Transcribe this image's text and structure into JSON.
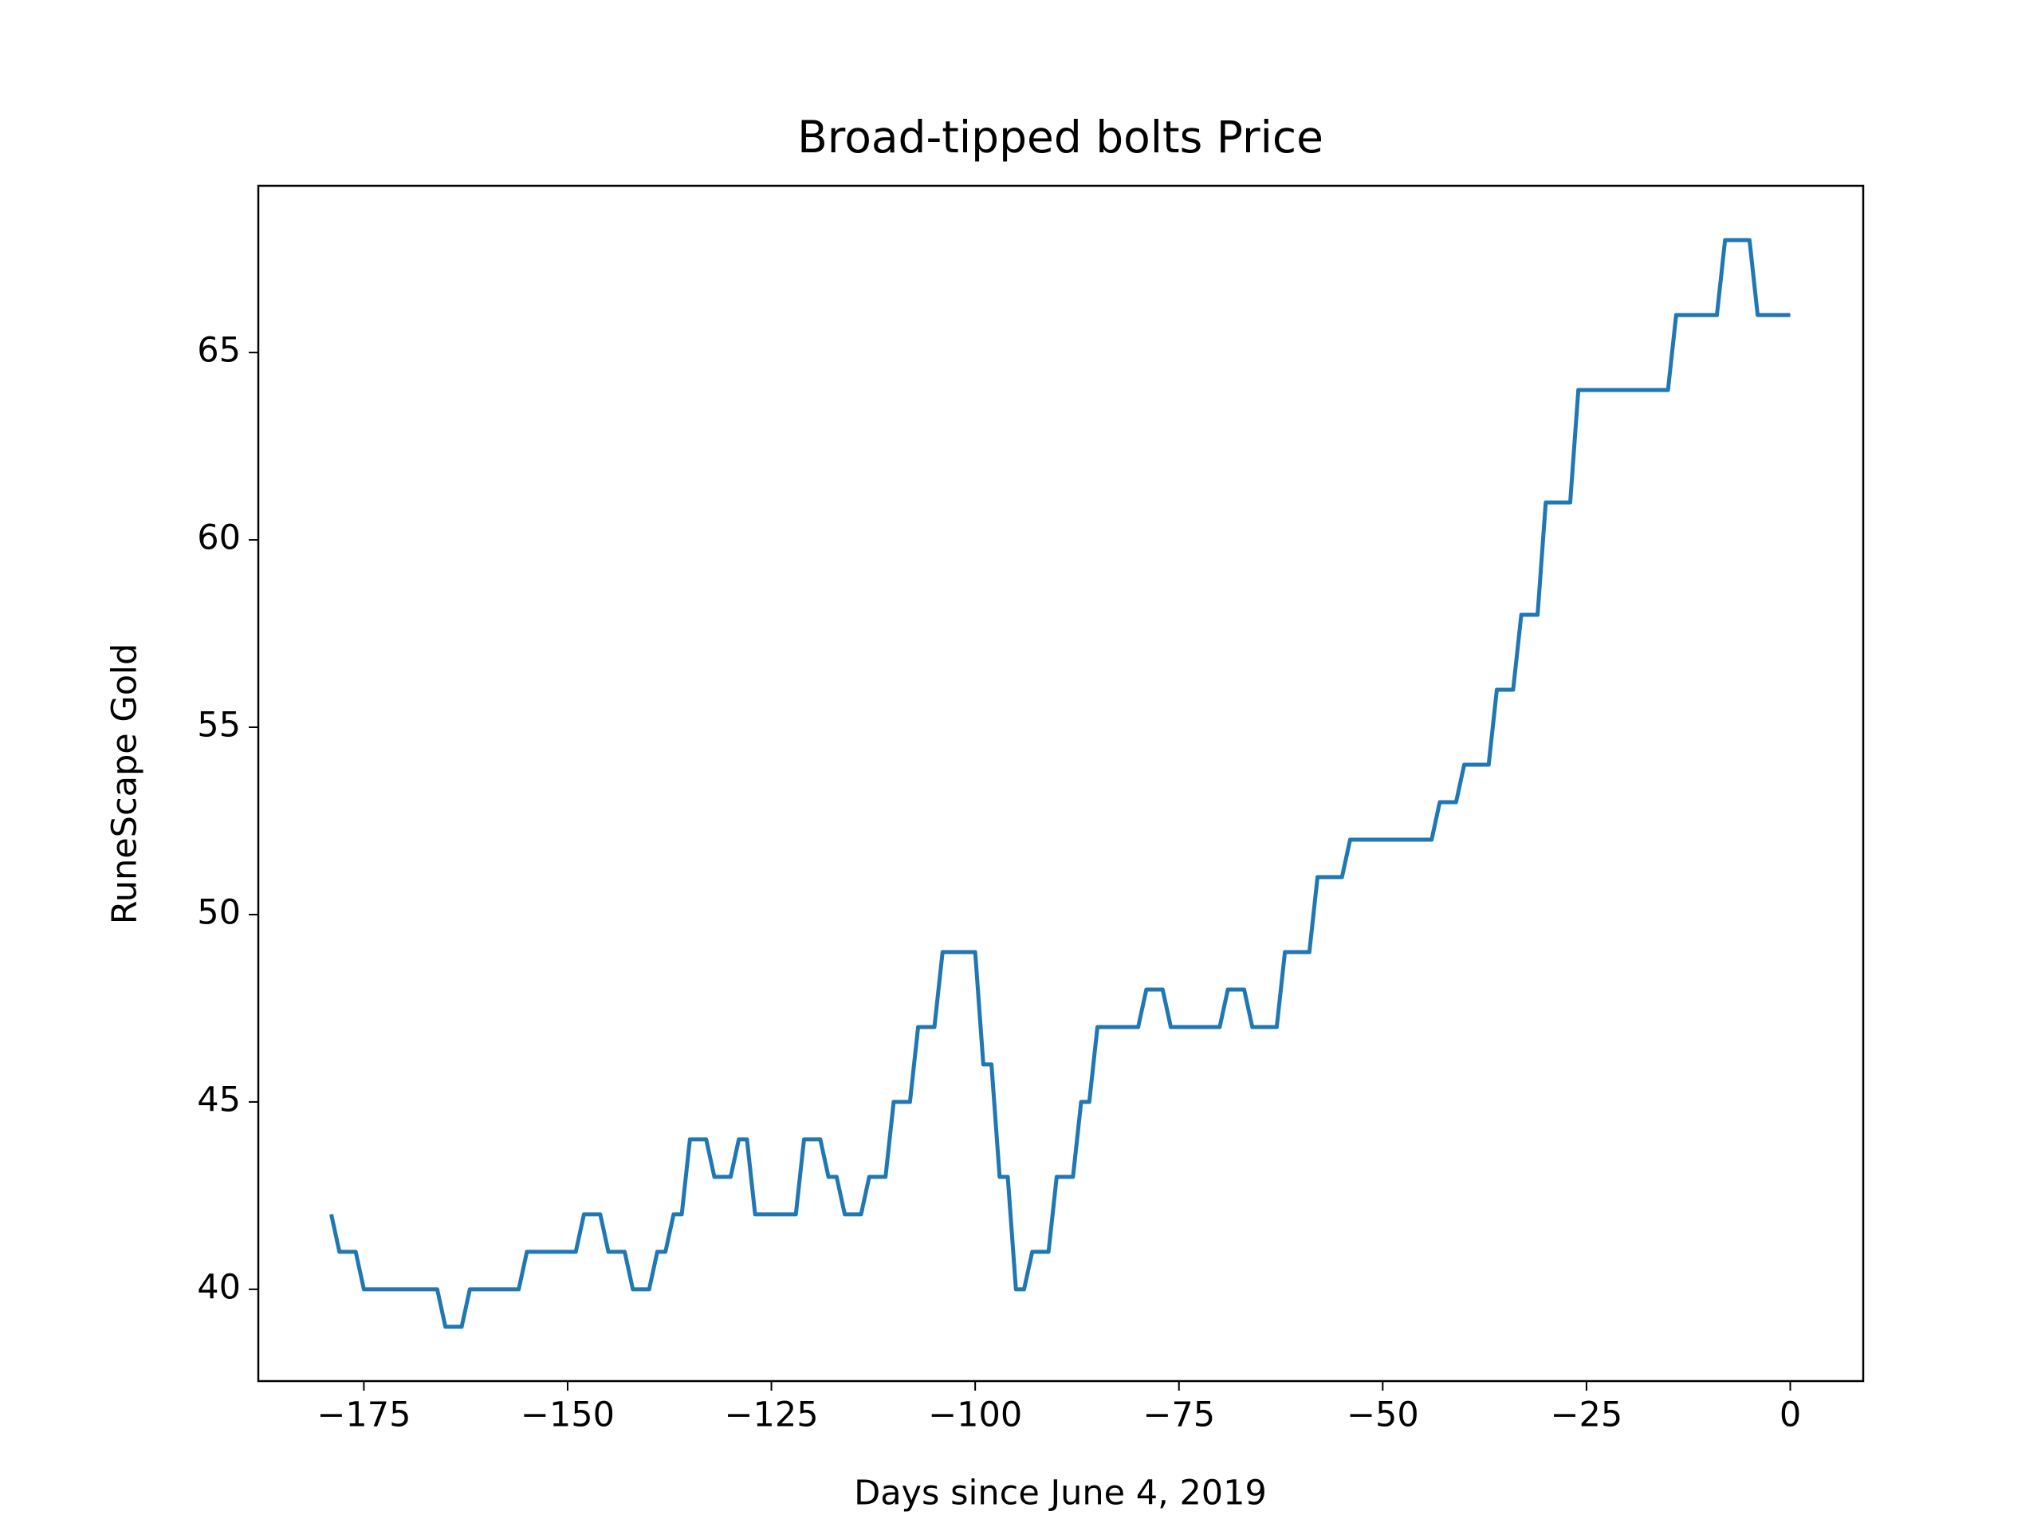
{
  "chart_data": {
    "type": "line",
    "title": "Broad-tipped bolts Price",
    "xlabel": "Days since June 4, 2019",
    "ylabel": "RuneScape Gold",
    "color": "#1f77b4",
    "x": [
      -179,
      -178,
      -177,
      -176,
      -175,
      -174,
      -173,
      -172,
      -171,
      -170,
      -169,
      -168,
      -167,
      -166,
      -165,
      -164,
      -163,
      -162,
      -161,
      -160,
      -159,
      -158,
      -157,
      -156,
      -155,
      -154,
      -153,
      -152,
      -151,
      -150,
      -149,
      -148,
      -147,
      -146,
      -145,
      -144,
      -143,
      -142,
      -141,
      -140,
      -139,
      -138,
      -137,
      -136,
      -135,
      -134,
      -133,
      -132,
      -131,
      -130,
      -129,
      -128,
      -127,
      -126,
      -125,
      -124,
      -123,
      -122,
      -121,
      -120,
      -119,
      -118,
      -117,
      -116,
      -115,
      -114,
      -113,
      -112,
      -111,
      -110,
      -109,
      -108,
      -107,
      -106,
      -105,
      -104,
      -103,
      -102,
      -101,
      -100,
      -99,
      -98,
      -97,
      -96,
      -95,
      -94,
      -93,
      -92,
      -91,
      -90,
      -89,
      -88,
      -87,
      -86,
      -85,
      -84,
      -83,
      -82,
      -81,
      -80,
      -79,
      -78,
      -77,
      -76,
      -75,
      -74,
      -73,
      -72,
      -71,
      -70,
      -69,
      -68,
      -67,
      -66,
      -65,
      -64,
      -63,
      -62,
      -61,
      -60,
      -59,
      -58,
      -57,
      -56,
      -55,
      -54,
      -53,
      -52,
      -51,
      -50,
      -49,
      -48,
      -47,
      -46,
      -45,
      -44,
      -43,
      -42,
      -41,
      -40,
      -39,
      -38,
      -37,
      -36,
      -35,
      -34,
      -33,
      -32,
      -31,
      -30,
      -29,
      -28,
      -27,
      -26,
      -25,
      -24,
      -23,
      -22,
      -21,
      -20,
      -19,
      -18,
      -17,
      -16,
      -15,
      -14,
      -13,
      -12,
      -11,
      -10,
      -9,
      -8,
      -7,
      -6,
      -5,
      -4,
      -3,
      -2,
      -1,
      0
    ],
    "values": [
      42,
      41,
      41,
      41,
      40,
      40,
      40,
      40,
      40,
      40,
      40,
      40,
      40,
      40,
      39,
      39,
      39,
      40,
      40,
      40,
      40,
      40,
      40,
      40,
      41,
      41,
      41,
      41,
      41,
      41,
      41,
      42,
      42,
      42,
      41,
      41,
      41,
      40,
      40,
      40,
      41,
      41,
      42,
      42,
      44,
      44,
      44,
      43,
      43,
      43,
      44,
      44,
      42,
      42,
      42,
      42,
      42,
      42,
      44,
      44,
      44,
      43,
      43,
      42,
      42,
      42,
      43,
      43,
      43,
      45,
      45,
      45,
      47,
      47,
      47,
      49,
      49,
      49,
      49,
      49,
      46,
      46,
      43,
      43,
      40,
      40,
      41,
      41,
      41,
      43,
      43,
      43,
      45,
      45,
      47,
      47,
      47,
      47,
      47,
      47,
      48,
      48,
      48,
      47,
      47,
      47,
      47,
      47,
      47,
      47,
      48,
      48,
      48,
      47,
      47,
      47,
      47,
      49,
      49,
      49,
      49,
      51,
      51,
      51,
      51,
      52,
      52,
      52,
      52,
      52,
      52,
      52,
      52,
      52,
      52,
      52,
      53,
      53,
      53,
      54,
      54,
      54,
      54,
      56,
      56,
      56,
      58,
      58,
      58,
      61,
      61,
      61,
      61,
      64,
      64,
      64,
      64,
      64,
      64,
      64,
      64,
      64,
      64,
      64,
      64,
      66,
      66,
      66,
      66,
      66,
      66,
      68,
      68,
      68,
      68,
      66,
      66,
      66,
      66,
      66
    ],
    "xlim": [
      -187.95,
      8.95
    ],
    "ylim": [
      37.55,
      69.45
    ],
    "xticks": [
      {
        "value": -175,
        "label": "−175"
      },
      {
        "value": -150,
        "label": "−150"
      },
      {
        "value": -125,
        "label": "−125"
      },
      {
        "value": -100,
        "label": "−100"
      },
      {
        "value": -75,
        "label": "−75"
      },
      {
        "value": -50,
        "label": "−50"
      },
      {
        "value": -25,
        "label": "−25"
      },
      0
    ],
    "yticks": [
      40,
      45,
      50,
      55,
      60,
      65
    ],
    "grid": false
  }
}
